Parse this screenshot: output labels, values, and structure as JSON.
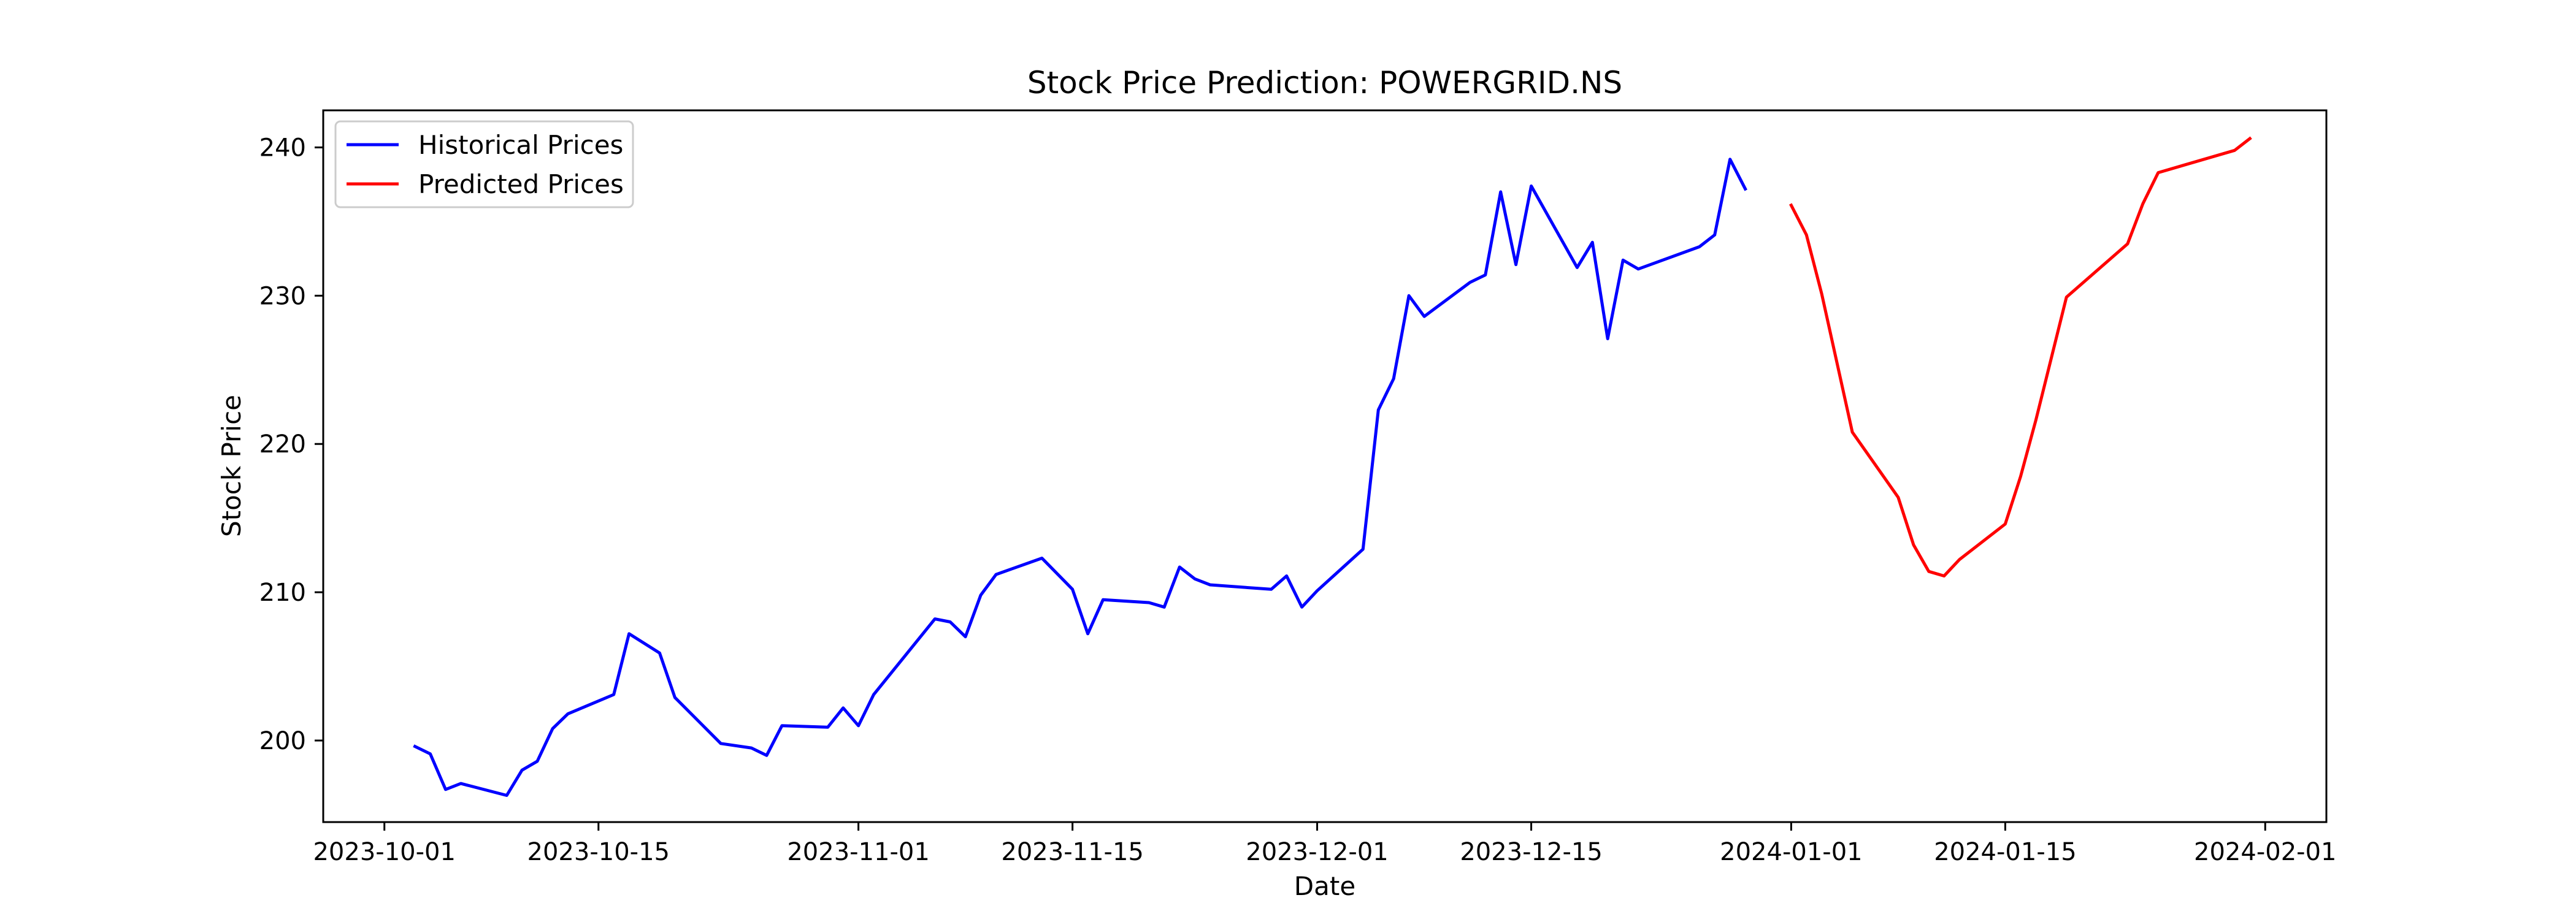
{
  "chart_data": {
    "type": "line",
    "title": "Stock Price Prediction: POWERGRID.NS",
    "xlabel": "Date",
    "ylabel": "Stock Price",
    "xlim": [
      "2023-09-27",
      "2024-02-05"
    ],
    "ylim": [
      194.5,
      242.5
    ],
    "x_ticks": [
      "2023-10-01",
      "2023-10-15",
      "2023-11-01",
      "2023-11-15",
      "2023-12-01",
      "2023-12-15",
      "2024-01-01",
      "2024-01-15",
      "2024-02-01"
    ],
    "y_ticks": [
      200,
      210,
      220,
      230,
      240
    ],
    "grid": false,
    "legend": {
      "position": "top-left",
      "entries": [
        "Historical Prices",
        "Predicted Prices"
      ]
    },
    "colors": {
      "historical": "#0000ff",
      "predicted": "#ff0000"
    },
    "series": [
      {
        "name": "Historical Prices",
        "color": "#0000ff",
        "points": [
          [
            "2023-10-03",
            199.6
          ],
          [
            "2023-10-04",
            199.1
          ],
          [
            "2023-10-05",
            196.7
          ],
          [
            "2023-10-06",
            197.1
          ],
          [
            "2023-10-09",
            196.3
          ],
          [
            "2023-10-10",
            198.0
          ],
          [
            "2023-10-11",
            198.6
          ],
          [
            "2023-10-12",
            200.8
          ],
          [
            "2023-10-13",
            201.8
          ],
          [
            "2023-10-16",
            203.1
          ],
          [
            "2023-10-17",
            207.2
          ],
          [
            "2023-10-19",
            205.9
          ],
          [
            "2023-10-20",
            202.9
          ],
          [
            "2023-10-23",
            199.8
          ],
          [
            "2023-10-25",
            199.5
          ],
          [
            "2023-10-26",
            199.0
          ],
          [
            "2023-10-27",
            201.0
          ],
          [
            "2023-10-30",
            200.9
          ],
          [
            "2023-10-31",
            202.2
          ],
          [
            "2023-11-01",
            201.0
          ],
          [
            "2023-11-02",
            203.1
          ],
          [
            "2023-11-06",
            208.2
          ],
          [
            "2023-11-07",
            208.0
          ],
          [
            "2023-11-08",
            207.0
          ],
          [
            "2023-11-09",
            209.8
          ],
          [
            "2023-11-10",
            211.2
          ],
          [
            "2023-11-13",
            212.3
          ],
          [
            "2023-11-15",
            210.2
          ],
          [
            "2023-11-16",
            207.2
          ],
          [
            "2023-11-17",
            209.5
          ],
          [
            "2023-11-20",
            209.3
          ],
          [
            "2023-11-21",
            209.0
          ],
          [
            "2023-11-22",
            211.7
          ],
          [
            "2023-11-23",
            210.9
          ],
          [
            "2023-11-24",
            210.5
          ],
          [
            "2023-11-28",
            210.2
          ],
          [
            "2023-11-29",
            211.1
          ],
          [
            "2023-11-30",
            209.0
          ],
          [
            "2023-12-01",
            210.1
          ],
          [
            "2023-12-04",
            212.9
          ],
          [
            "2023-12-05",
            222.3
          ],
          [
            "2023-12-06",
            224.4
          ],
          [
            "2023-12-07",
            230.0
          ],
          [
            "2023-12-08",
            228.6
          ],
          [
            "2023-12-11",
            230.9
          ],
          [
            "2023-12-12",
            231.4
          ],
          [
            "2023-12-13",
            237.0
          ],
          [
            "2023-12-14",
            232.1
          ],
          [
            "2023-12-15",
            237.4
          ],
          [
            "2023-12-18",
            231.9
          ],
          [
            "2023-12-19",
            233.6
          ],
          [
            "2023-12-20",
            227.1
          ],
          [
            "2023-12-21",
            232.4
          ],
          [
            "2023-12-22",
            231.8
          ],
          [
            "2023-12-26",
            233.3
          ],
          [
            "2023-12-27",
            234.1
          ],
          [
            "2023-12-28",
            239.2
          ],
          [
            "2023-12-29",
            237.2
          ]
        ]
      },
      {
        "name": "Predicted Prices",
        "color": "#ff0000",
        "points": [
          [
            "2024-01-01",
            236.1
          ],
          [
            "2024-01-02",
            234.1
          ],
          [
            "2024-01-03",
            230.1
          ],
          [
            "2024-01-05",
            220.8
          ],
          [
            "2024-01-08",
            216.4
          ],
          [
            "2024-01-09",
            213.2
          ],
          [
            "2024-01-10",
            211.4
          ],
          [
            "2024-01-11",
            211.1
          ],
          [
            "2024-01-12",
            212.2
          ],
          [
            "2024-01-15",
            214.6
          ],
          [
            "2024-01-16",
            217.8
          ],
          [
            "2024-01-17",
            221.6
          ],
          [
            "2024-01-19",
            229.9
          ],
          [
            "2024-01-23",
            233.5
          ],
          [
            "2024-01-24",
            236.2
          ],
          [
            "2024-01-25",
            238.3
          ],
          [
            "2024-01-30",
            239.8
          ],
          [
            "2024-01-31",
            240.6
          ]
        ]
      }
    ]
  }
}
